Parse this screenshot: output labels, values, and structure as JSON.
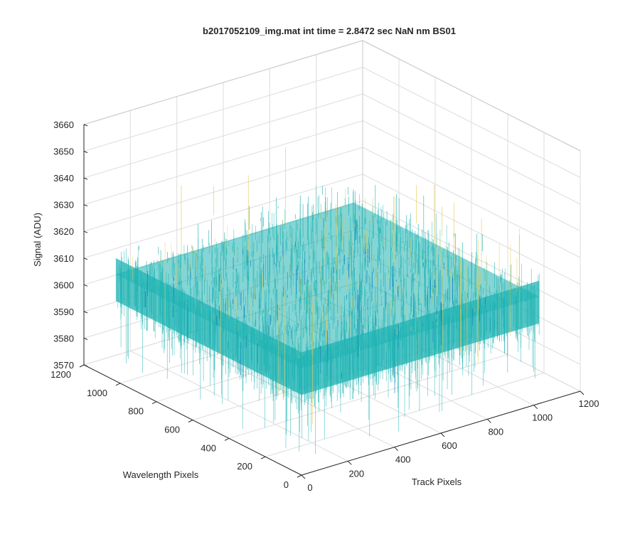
{
  "chart_data": {
    "type": "surface",
    "title": "b2017052109_img.mat int time = 2.8472 sec  NaN nm BS01",
    "xlabel": "Track Pixels",
    "ylabel": "Wavelength Pixels",
    "zlabel": "Signal (ADU)",
    "x_ticks": [
      "0",
      "200",
      "400",
      "600",
      "800",
      "1000",
      "1200"
    ],
    "y_ticks": [
      "0",
      "200",
      "400",
      "600",
      "800",
      "1000",
      "1200"
    ],
    "z_ticks": [
      "3570",
      "3580",
      "3590",
      "3600",
      "3610",
      "3620",
      "3630",
      "3640",
      "3650",
      "3660"
    ],
    "xlim": [
      0,
      1200
    ],
    "ylim": [
      0,
      1200
    ],
    "zlim": [
      3570,
      3660
    ],
    "x_data_range": [
      0,
      1024
    ],
    "y_data_range": [
      0,
      1024
    ],
    "signal_mean": 3610,
    "signal_noise_range": [
      3575,
      3650
    ],
    "grid": true,
    "colormap": "parula",
    "colors": {
      "low": "#0072bd",
      "mid": "#1fb3b3",
      "high": "#e6c84a"
    }
  }
}
